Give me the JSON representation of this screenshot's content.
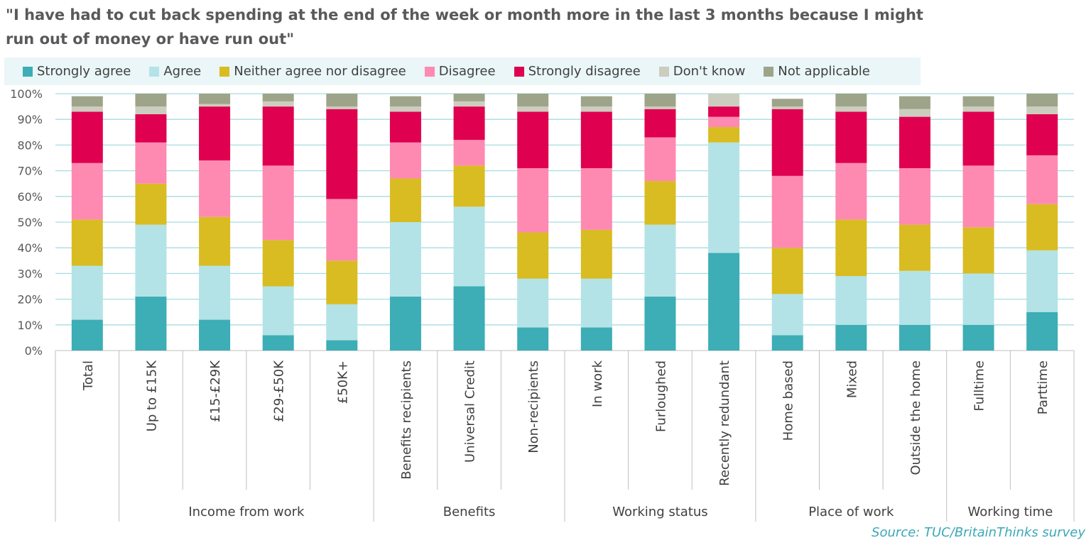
{
  "chart_data": {
    "type": "bar",
    "stacked": true,
    "title": "\"I have had to cut back spending at the end of the week or month more in the last 3 months because I might run out of money or have run out\"",
    "y_tick_labels": [
      "0%",
      "10%",
      "20%",
      "30%",
      "40%",
      "50%",
      "60%",
      "70%",
      "80%",
      "90%",
      "100%"
    ],
    "ylim": [
      0,
      100
    ],
    "grid": true,
    "legend_position": "top",
    "categories": [
      "Total",
      "Up to £15K",
      "£15-£29K",
      "£29-£50K",
      "£50K+",
      "Benefits recipients",
      "Universal Credit",
      "Non-recipients",
      "In work",
      "Furloughed",
      "Recently redundant",
      "Home based",
      "Mixed",
      "Outside the home",
      "Fulltime",
      "Parttime"
    ],
    "groups": [
      {
        "label": "",
        "categories": [
          "Total"
        ]
      },
      {
        "label": "Income from work",
        "categories": [
          "Up to £15K",
          "£15-£29K",
          "£29-£50K",
          "£50K+"
        ]
      },
      {
        "label": "Benefits",
        "categories": [
          "Benefits recipients",
          "Universal Credit",
          "Non-recipients"
        ]
      },
      {
        "label": "Working status",
        "categories": [
          "In work",
          "Furloughed",
          "Recently redundant"
        ]
      },
      {
        "label": "Place of work",
        "categories": [
          "Home based",
          "Mixed",
          "Outside the home"
        ]
      },
      {
        "label": "Working time",
        "categories": [
          "Fulltime",
          "Parttime"
        ]
      }
    ],
    "series": [
      {
        "name": "Strongly agree",
        "color": "#3dadb6",
        "values": [
          12,
          21,
          12,
          6,
          4,
          21,
          25,
          9,
          9,
          21,
          38,
          6,
          10,
          10,
          10,
          15
        ]
      },
      {
        "name": "Agree",
        "color": "#b3e3e6",
        "values": [
          21,
          28,
          21,
          19,
          14,
          29,
          31,
          19,
          19,
          28,
          43,
          16,
          19,
          21,
          20,
          24
        ]
      },
      {
        "name": "Neither agree nor disagree",
        "color": "#d9bc22",
        "values": [
          18,
          16,
          19,
          18,
          17,
          17,
          16,
          18,
          19,
          17,
          6,
          18,
          22,
          18,
          18,
          18
        ]
      },
      {
        "name": "Disagree",
        "color": "#fe8ab1",
        "values": [
          22,
          16,
          22,
          29,
          24,
          14,
          10,
          25,
          24,
          17,
          4,
          28,
          22,
          22,
          24,
          19
        ]
      },
      {
        "name": "Strongly disagree",
        "color": "#df004f",
        "values": [
          20,
          11,
          21,
          23,
          35,
          12,
          13,
          22,
          22,
          11,
          4,
          26,
          20,
          20,
          21,
          16
        ]
      },
      {
        "name": "Don't know",
        "color": "#cbcdbe",
        "values": [
          2,
          3,
          1,
          2,
          1,
          2,
          2,
          2,
          2,
          1,
          5,
          1,
          2,
          3,
          2,
          3
        ]
      },
      {
        "name": "Not applicable",
        "color": "#9ea489",
        "values": [
          4,
          5,
          4,
          3,
          5,
          4,
          3,
          5,
          4,
          5,
          0,
          3,
          5,
          5,
          4,
          5
        ]
      }
    ]
  },
  "source": "Source: TUC/BritainThinks survey"
}
